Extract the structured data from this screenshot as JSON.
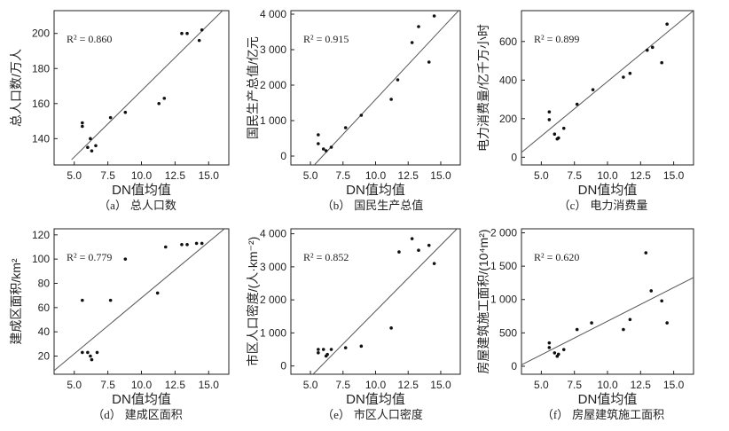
{
  "chart_data": [
    {
      "type": "scatter",
      "panel": "(a) 总人口数",
      "caption_label": "（a）",
      "caption_text": "总人口数",
      "xlabel": "DN值均值",
      "ylabel": "总人口数/万人",
      "r2_label": "R² = 0.860",
      "xlim": [
        3.5,
        16.5
      ],
      "ylim": [
        125,
        213
      ],
      "xticks": [
        "5.0",
        "7.5",
        "10.0",
        "12.5",
        "15.0"
      ],
      "xtick_values": [
        5,
        7.5,
        10,
        12.5,
        15
      ],
      "yticks": [
        "140",
        "160",
        "180",
        "200"
      ],
      "ytick_values": [
        140,
        160,
        180,
        200
      ],
      "points": [
        [
          5.6,
          149
        ],
        [
          5.6,
          147
        ],
        [
          6.0,
          135
        ],
        [
          6.2,
          140
        ],
        [
          6.3,
          133
        ],
        [
          6.6,
          136
        ],
        [
          7.7,
          152
        ],
        [
          8.8,
          155
        ],
        [
          11.3,
          160
        ],
        [
          11.7,
          163
        ],
        [
          13.0,
          200
        ],
        [
          13.4,
          200
        ],
        [
          14.3,
          196
        ],
        [
          14.5,
          202
        ]
      ],
      "fit_line": [
        [
          4.8,
          128
        ],
        [
          16.3,
          215
        ]
      ]
    },
    {
      "type": "scatter",
      "panel": "(b) 国民生产总值",
      "caption_label": "（b）",
      "caption_text": "国民生产总值",
      "xlabel": "DN值均值",
      "ylabel": "国民生产总值/亿元",
      "r2_label": "R² = 0.915",
      "xlim": [
        3.5,
        16.5
      ],
      "ylim": [
        -250,
        4100
      ],
      "xticks": [
        "5.0",
        "7.5",
        "10.0",
        "12.5",
        "15.0"
      ],
      "xtick_values": [
        5,
        7.5,
        10,
        12.5,
        15
      ],
      "yticks": [
        "0",
        "1 000",
        "2 000",
        "3 000",
        "4 000"
      ],
      "ytick_values": [
        0,
        1000,
        2000,
        3000,
        4000
      ],
      "points": [
        [
          5.6,
          600
        ],
        [
          5.6,
          350
        ],
        [
          6.0,
          200
        ],
        [
          6.2,
          150
        ],
        [
          6.6,
          250
        ],
        [
          7.7,
          800
        ],
        [
          8.9,
          1150
        ],
        [
          11.2,
          1600
        ],
        [
          11.7,
          2150
        ],
        [
          12.8,
          3200
        ],
        [
          13.3,
          3650
        ],
        [
          14.1,
          2650
        ],
        [
          14.5,
          3950
        ]
      ],
      "fit_line": [
        [
          5.3,
          -250
        ],
        [
          16.5,
          4150
        ]
      ]
    },
    {
      "type": "scatter",
      "panel": "(c) 电力消费量",
      "caption_label": "（c）",
      "caption_text": "电力消费量",
      "xlabel": "DN值均值",
      "ylabel": "电力消费量/亿千万小时",
      "r2_label": "R² = 0.899",
      "xlim": [
        3.5,
        16.5
      ],
      "ylim": [
        -40,
        760
      ],
      "xticks": [
        "5.0",
        "7.5",
        "10.0",
        "12.5",
        "15.0"
      ],
      "xtick_values": [
        5,
        7.5,
        10,
        12.5,
        15
      ],
      "yticks": [
        "0",
        "200",
        "400",
        "600"
      ],
      "ytick_values": [
        0,
        200,
        400,
        600
      ],
      "points": [
        [
          5.6,
          235
        ],
        [
          5.6,
          195
        ],
        [
          6.0,
          120
        ],
        [
          6.2,
          95
        ],
        [
          6.3,
          100
        ],
        [
          6.7,
          150
        ],
        [
          7.7,
          275
        ],
        [
          8.9,
          350
        ],
        [
          11.2,
          415
        ],
        [
          11.7,
          435
        ],
        [
          13.0,
          555
        ],
        [
          13.4,
          570
        ],
        [
          14.1,
          490
        ],
        [
          14.5,
          690
        ]
      ],
      "fit_line": [
        [
          3.5,
          25
        ],
        [
          16.5,
          760
        ]
      ]
    },
    {
      "type": "scatter",
      "panel": "(d) 建成区面积",
      "caption_label": "（d）",
      "caption_text": "建成区面积",
      "xlabel": "DN值均值",
      "ylabel": "建成区面积/km²",
      "r2_label": "R² = 0.779",
      "xlim": [
        3.5,
        16.5
      ],
      "ylim": [
        5,
        125
      ],
      "xticks": [
        "5.0",
        "7.5",
        "10.0",
        "12.5",
        "15.0"
      ],
      "xtick_values": [
        5,
        7.5,
        10,
        12.5,
        15
      ],
      "yticks": [
        "20",
        "40",
        "60",
        "80",
        "100",
        "120"
      ],
      "ytick_values": [
        20,
        40,
        60,
        80,
        100,
        120
      ],
      "points": [
        [
          5.6,
          66
        ],
        [
          5.6,
          23
        ],
        [
          6.0,
          23
        ],
        [
          6.2,
          20
        ],
        [
          6.3,
          17
        ],
        [
          6.7,
          23
        ],
        [
          7.7,
          66
        ],
        [
          8.8,
          100
        ],
        [
          11.2,
          72
        ],
        [
          11.8,
          110
        ],
        [
          13.0,
          112
        ],
        [
          13.4,
          112
        ],
        [
          14.1,
          113
        ],
        [
          14.5,
          113
        ]
      ],
      "fit_line": [
        [
          3.5,
          8
        ],
        [
          16.5,
          128
        ]
      ]
    },
    {
      "type": "scatter",
      "panel": "(e) 市区人口密度",
      "caption_label": "（e）",
      "caption_text": "市区人口密度",
      "xlabel": "DN值均值",
      "ylabel": "市区人口密度/(人·km⁻²)",
      "r2_label": "R² = 0.852",
      "xlim": [
        3.5,
        16.5
      ],
      "ylim": [
        -250,
        4150
      ],
      "xticks": [
        "5.0",
        "7.5",
        "10.0",
        "12.5",
        "15.0"
      ],
      "xtick_values": [
        5,
        7.5,
        10,
        12.5,
        15
      ],
      "yticks": [
        "0",
        "1 000",
        "2 000",
        "3 000",
        "4 000"
      ],
      "ytick_values": [
        0,
        1000,
        2000,
        3000,
        4000
      ],
      "points": [
        [
          5.6,
          500
        ],
        [
          5.6,
          400
        ],
        [
          6.0,
          500
        ],
        [
          6.2,
          300
        ],
        [
          6.3,
          350
        ],
        [
          6.6,
          500
        ],
        [
          7.7,
          550
        ],
        [
          8.9,
          600
        ],
        [
          11.2,
          1150
        ],
        [
          11.8,
          3450
        ],
        [
          12.8,
          3850
        ],
        [
          13.3,
          3500
        ],
        [
          14.1,
          3650
        ],
        [
          14.5,
          3100
        ]
      ],
      "fit_line": [
        [
          5.2,
          -250
        ],
        [
          16.5,
          4250
        ]
      ]
    },
    {
      "type": "scatter",
      "panel": "(f) 房屋建筑施工面积",
      "caption_label": "（f）",
      "caption_text": "房屋建筑施工面积",
      "xlabel": "DN值均值",
      "ylabel": "房屋建筑施工面积/(10⁴m²)",
      "r2_label": "R² = 0.620",
      "xlim": [
        3.5,
        16.5
      ],
      "ylim": [
        -120,
        2060
      ],
      "xticks": [
        "5.0",
        "7.5",
        "10.0",
        "12.5",
        "15.0"
      ],
      "xtick_values": [
        5,
        7.5,
        10,
        12.5,
        15
      ],
      "yticks": [
        "0",
        "500",
        "1 000",
        "1 500",
        "2 000"
      ],
      "ytick_values": [
        0,
        500,
        1000,
        1500,
        2000
      ],
      "points": [
        [
          5.6,
          350
        ],
        [
          5.6,
          280
        ],
        [
          6.0,
          200
        ],
        [
          6.2,
          150
        ],
        [
          6.3,
          180
        ],
        [
          6.7,
          250
        ],
        [
          7.7,
          550
        ],
        [
          8.8,
          650
        ],
        [
          11.2,
          550
        ],
        [
          11.7,
          700
        ],
        [
          12.9,
          1700
        ],
        [
          13.3,
          1130
        ],
        [
          14.1,
          980
        ],
        [
          14.5,
          650
        ]
      ],
      "fit_line": [
        [
          3.5,
          20
        ],
        [
          16.5,
          1330
        ]
      ]
    }
  ]
}
